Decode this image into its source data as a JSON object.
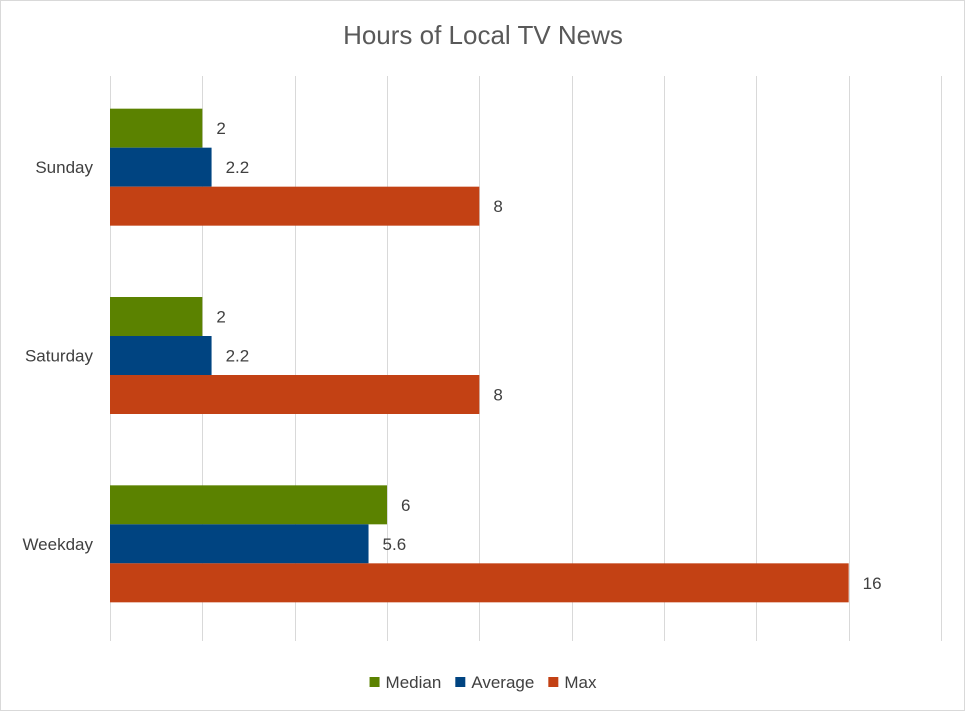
{
  "chart_data": {
    "type": "bar",
    "orientation": "horizontal",
    "title": "Hours of Local TV News",
    "categories": [
      "Sunday",
      "Saturday",
      "Weekday"
    ],
    "series": [
      {
        "name": "Median",
        "values": [
          2,
          2,
          6
        ],
        "color": "#5b8200"
      },
      {
        "name": "Average",
        "values": [
          2.2,
          2.2,
          5.6
        ],
        "color": "#004481"
      },
      {
        "name": "Max",
        "values": [
          8,
          8,
          16
        ],
        "color": "#c34114"
      }
    ],
    "xlim": [
      0,
      18
    ],
    "x_grid_step": 2,
    "grid": true,
    "x_tick_labels_visible": false,
    "legend_position": "bottom",
    "data_labels": true
  }
}
